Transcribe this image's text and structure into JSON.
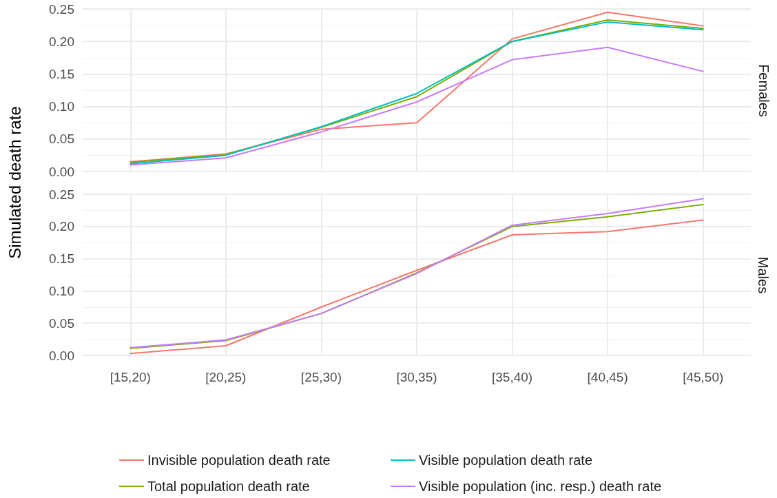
{
  "chart_data": [
    {
      "type": "line",
      "title": "Females",
      "ylabel": "Simulated death rate",
      "categories": [
        null,
        null,
        null,
        null,
        null,
        null,
        null
      ],
      "series": [
        {
          "color": "#f8766d",
          "values": [
            0.015,
            0.027,
            0.065,
            0.075,
            0.204,
            0.245,
            0.224
          ]
        },
        {
          "color": "#7cae00",
          "values": [
            0.014,
            0.026,
            0.068,
            0.115,
            0.2,
            0.233,
            0.22
          ]
        },
        {
          "color": "#00bfc4",
          "values": [
            0.012,
            0.025,
            0.069,
            0.12,
            0.2,
            0.23,
            0.218
          ]
        },
        {
          "color": "#c77cff",
          "values": [
            0.01,
            0.021,
            0.061,
            0.107,
            0.172,
            0.191,
            0.154
          ]
        }
      ],
      "ylim": [
        0,
        0.25
      ],
      "yticks": [
        {
          "value": 0,
          "label": "0.00"
        },
        0.05,
        {
          "value": 0.1,
          "label": "0.10"
        },
        0.15,
        {
          "value": 0.2,
          "label": "0.20"
        },
        0.25
      ],
      "grid": true,
      "marker": "none",
      "tick_labels": "y"
    },
    {
      "type": "line",
      "title": "Males",
      "categories": [
        "[15,20)",
        "[20,25)",
        "[25,30)",
        "[30,35)",
        "[35,40)",
        "[40,45)",
        "[45,50)"
      ],
      "series": [
        {
          "name": "Invisible population death rate",
          "color": "#f8766d",
          "values": [
            0.003,
            0.015,
            0.075,
            0.132,
            0.187,
            0.192,
            0.21
          ]
        },
        {
          "name": "Total population death rate",
          "color": "#7cae00",
          "values": [
            0.011,
            0.023,
            0.065,
            0.128,
            0.2,
            0.215,
            0.234
          ]
        },
        {
          "name": "Visible population death rate",
          "color": "#00bfc4",
          "values": [
            null,
            null,
            null,
            null,
            null,
            null,
            null
          ]
        },
        {
          "name": "Visible population (inc. resp.) death rate",
          "color": "#c77cff",
          "values": [
            0.012,
            0.024,
            0.065,
            0.127,
            0.202,
            0.22,
            0.243
          ]
        }
      ],
      "ylim": [
        0,
        0.25
      ],
      "yticks": [
        {
          "value": 0,
          "label": "0.00"
        },
        0.05,
        {
          "value": 0.1,
          "label": "0.10"
        },
        0.15,
        {
          "value": 0.2,
          "label": "0.20"
        },
        0.25
      ],
      "grid": true,
      "legend": "bottom",
      "marker": "none"
    }
  ]
}
